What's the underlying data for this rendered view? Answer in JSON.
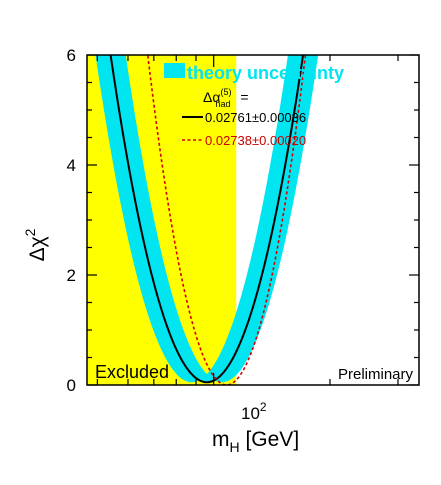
{
  "chart_data": {
    "type": "line",
    "x_scale": "log",
    "xlim": [
      47,
      340
    ],
    "ylim": [
      0,
      6
    ],
    "x_ticks": [
      100
    ],
    "x_tick_labels": [
      {
        "base": "10",
        "exp": "2"
      }
    ],
    "y_ticks": [
      0,
      2,
      4,
      6
    ],
    "y_tick_labels": [
      "0",
      "2",
      "4",
      "6"
    ],
    "xlabel": {
      "main": "m",
      "sub": "H",
      "rest": " [GeV]"
    },
    "ylabel": {
      "main": "Δχ",
      "sup": "2"
    },
    "excluded_region": {
      "x_min": 47,
      "x_max": 114.4,
      "color": "#ffff00",
      "label": "Excluded"
    },
    "corner_label": "Preliminary",
    "legend": {
      "band_label": "theory uncertainty",
      "header": {
        "main": "Δα",
        "sup": "(5)",
        "sub": "had",
        "rest": " ="
      },
      "entries": [
        "0.02761±0.00036",
        "0.02738±0.00020"
      ]
    },
    "band": {
      "name": "theory uncertainty",
      "color": "#00e5f0",
      "center_x": 96,
      "min_chi2": 0.05,
      "half_width": 0.07
    },
    "series": [
      {
        "label": "0.02761±0.00036",
        "style": "solid",
        "color": "#000000",
        "min_x": 96,
        "min_chi2": 0.05
      },
      {
        "label": "0.02738±0.00020",
        "style": "dashed",
        "color": "#d40000",
        "min_x": 108,
        "min_chi2": 0.0
      }
    ],
    "colors": {
      "excluded": "#ffff00",
      "band": "#00e5f0",
      "solid": "#000000",
      "dashed": "#d40000",
      "legend_red": "#cc0000"
    }
  }
}
